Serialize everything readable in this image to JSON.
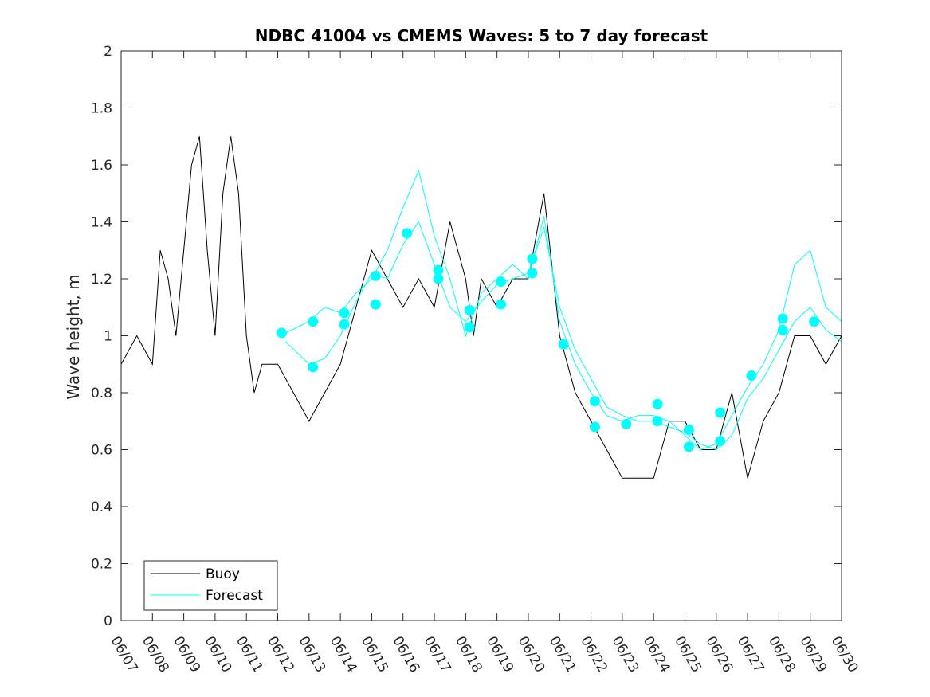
{
  "chart_data": {
    "type": "line",
    "title": "NDBC 41004 vs CMEMS Waves: 5 to 7 day forecast",
    "xlabel": "",
    "ylabel": "Wave height, m",
    "xlim": [
      "06/07",
      "06/30"
    ],
    "ylim": [
      0,
      2
    ],
    "x_tick_labels": [
      "06/07",
      "06/08",
      "06/09",
      "06/10",
      "06/11",
      "06/12",
      "06/13",
      "06/14",
      "06/15",
      "06/16",
      "06/17",
      "06/18",
      "06/19",
      "06/20",
      "06/21",
      "06/22",
      "06/23",
      "06/24",
      "06/25",
      "06/26",
      "06/27",
      "06/28",
      "06/29",
      "06/30"
    ],
    "y_ticks": [
      0,
      0.2,
      0.4,
      0.6,
      0.8,
      1,
      1.2,
      1.4,
      1.6,
      1.8,
      2
    ],
    "y_tick_labels": [
      "0",
      "0.2",
      "0.4",
      "0.6",
      "0.8",
      "1",
      "1.2",
      "1.4",
      "1.6",
      "1.8",
      "2"
    ],
    "grid": false,
    "legend_position": "bottom-left",
    "colors": {
      "buoy": "#000000",
      "forecast": "#00ffff"
    },
    "series": [
      {
        "name": "Buoy",
        "x": [
          "06/07",
          "06/07 12:00",
          "06/08",
          "06/08 06:00",
          "06/08 12:00",
          "06/08 18:00",
          "06/09 06:00",
          "06/09 12:00",
          "06/09 18:00",
          "06/10",
          "06/10 06:00",
          "06/10 12:00",
          "06/10 18:00",
          "06/11",
          "06/11 06:00",
          "06/11 12:00",
          "06/11 18:00",
          "06/12",
          "06/12 12:00",
          "06/13",
          "06/13 12:00",
          "06/14",
          "06/14 12:00",
          "06/15",
          "06/15 12:00",
          "06/16",
          "06/16 12:00",
          "06/17",
          "06/17 12:00",
          "06/18",
          "06/18 06:00",
          "06/18 12:00",
          "06/19",
          "06/19 12:00",
          "06/20",
          "06/20 12:00",
          "06/21",
          "06/21 12:00",
          "06/22",
          "06/22 12:00",
          "06/23",
          "06/23 12:00",
          "06/24",
          "06/24 12:00",
          "06/25",
          "06/25 12:00",
          "06/26",
          "06/26 12:00",
          "06/27",
          "06/27 12:00",
          "06/28",
          "06/28 12:00",
          "06/29",
          "06/29 12:00",
          "06/30"
        ],
        "y": [
          0.9,
          1.0,
          0.9,
          1.3,
          1.2,
          1.0,
          1.6,
          1.7,
          1.3,
          1.0,
          1.5,
          1.7,
          1.5,
          1.0,
          0.8,
          0.9,
          0.9,
          0.9,
          0.8,
          0.7,
          0.8,
          0.9,
          1.1,
          1.3,
          1.2,
          1.1,
          1.2,
          1.1,
          1.4,
          1.2,
          1.0,
          1.2,
          1.1,
          1.2,
          1.2,
          1.5,
          1.0,
          0.8,
          0.7,
          0.6,
          0.5,
          0.5,
          0.5,
          0.7,
          0.7,
          0.6,
          0.6,
          0.8,
          0.5,
          0.7,
          0.8,
          1.0,
          1.0,
          0.9,
          1.0
        ]
      },
      {
        "name": "Forecast",
        "x": [
          "06/12 06:00",
          "06/13",
          "06/13 12:00",
          "06/14",
          "06/14 12:00",
          "06/15",
          "06/15 12:00",
          "06/16",
          "06/16 12:00",
          "06/17",
          "06/17 12:00",
          "06/18",
          "06/18 12:00",
          "06/19",
          "06/19 12:00",
          "06/20",
          "06/20 12:00",
          "06/21",
          "06/21 12:00",
          "06/22",
          "06/22 12:00",
          "06/23",
          "06/23 12:00",
          "06/24",
          "06/24 12:00",
          "06/25",
          "06/25 12:00",
          "06/26",
          "06/26 12:00",
          "06/27",
          "06/27 12:00",
          "06/28",
          "06/28 12:00",
          "06/29",
          "06/29 12:00",
          "06/30"
        ],
        "y": [
          0.98,
          0.9,
          0.92,
          1.0,
          1.12,
          1.22,
          1.2,
          1.32,
          1.4,
          1.25,
          1.1,
          1.05,
          1.12,
          1.18,
          1.2,
          1.22,
          1.38,
          1.1,
          0.95,
          0.85,
          0.75,
          0.72,
          0.7,
          0.7,
          0.68,
          0.66,
          0.62,
          0.6,
          0.65,
          0.78,
          0.85,
          0.95,
          1.05,
          1.1,
          1.02,
          0.98
        ]
      },
      {
        "name": "",
        "x": [
          "06/12 06:00",
          "06/13",
          "06/13 12:00",
          "06/14",
          "06/14 12:00",
          "06/15",
          "06/15 12:00",
          "06/16",
          "06/16 12:00",
          "06/17",
          "06/17 12:00",
          "06/18",
          "06/18 12:00",
          "06/19",
          "06/19 12:00",
          "06/20",
          "06/20 12:00",
          "06/21",
          "06/21 12:00",
          "06/22",
          "06/22 12:00",
          "06/23",
          "06/23 12:00",
          "06/24",
          "06/24 12:00",
          "06/25",
          "06/25 12:00",
          "06/26",
          "06/26 12:00",
          "06/27",
          "06/27 12:00",
          "06/28",
          "06/28 12:00",
          "06/29",
          "06/29 12:00",
          "06/30"
        ],
        "y": [
          1.01,
          1.05,
          1.1,
          1.08,
          1.15,
          1.2,
          1.3,
          1.45,
          1.58,
          1.35,
          1.2,
          1.0,
          1.15,
          1.2,
          1.25,
          1.2,
          1.42,
          1.05,
          0.9,
          0.8,
          0.72,
          0.7,
          0.72,
          0.72,
          0.7,
          0.65,
          0.6,
          0.62,
          0.72,
          0.82,
          0.9,
          1.02,
          1.25,
          1.3,
          1.1,
          1.05
        ]
      }
    ],
    "markers": [
      {
        "x": "06/12 03:00",
        "y": 1.01
      },
      {
        "x": "06/13 03:00",
        "y": 1.05
      },
      {
        "x": "06/13 03:00",
        "y": 0.89
      },
      {
        "x": "06/14 03:00",
        "y": 1.08
      },
      {
        "x": "06/14 03:00",
        "y": 1.04
      },
      {
        "x": "06/15 03:00",
        "y": 1.21
      },
      {
        "x": "06/15 03:00",
        "y": 1.11
      },
      {
        "x": "06/16 03:00",
        "y": 1.36
      },
      {
        "x": "06/17 03:00",
        "y": 1.23
      },
      {
        "x": "06/17 03:00",
        "y": 1.2
      },
      {
        "x": "06/18 03:00",
        "y": 1.09
      },
      {
        "x": "06/18 03:00",
        "y": 1.03
      },
      {
        "x": "06/19 03:00",
        "y": 1.19
      },
      {
        "x": "06/19 03:00",
        "y": 1.11
      },
      {
        "x": "06/20 03:00",
        "y": 1.27
      },
      {
        "x": "06/20 03:00",
        "y": 1.22
      },
      {
        "x": "06/21 03:00",
        "y": 0.97
      },
      {
        "x": "06/22 03:00",
        "y": 0.77
      },
      {
        "x": "06/22 03:00",
        "y": 0.68
      },
      {
        "x": "06/23 03:00",
        "y": 0.69
      },
      {
        "x": "06/24 03:00",
        "y": 0.76
      },
      {
        "x": "06/24 03:00",
        "y": 0.7
      },
      {
        "x": "06/25 03:00",
        "y": 0.67
      },
      {
        "x": "06/25 03:00",
        "y": 0.61
      },
      {
        "x": "06/26 03:00",
        "y": 0.73
      },
      {
        "x": "06/26 03:00",
        "y": 0.63
      },
      {
        "x": "06/27 03:00",
        "y": 0.86
      },
      {
        "x": "06/28 03:00",
        "y": 1.06
      },
      {
        "x": "06/28 03:00",
        "y": 1.02
      },
      {
        "x": "06/29 03:00",
        "y": 1.05
      }
    ]
  }
}
